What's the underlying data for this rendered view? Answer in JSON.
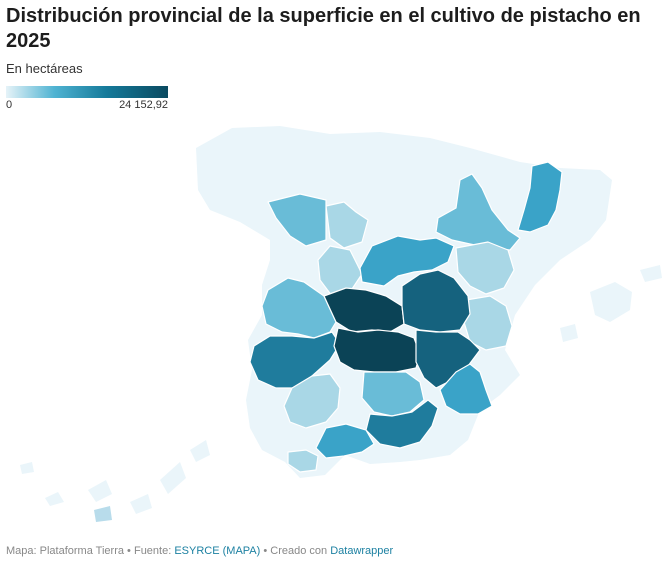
{
  "title": "Distribución provincial de la superficie en el cultivo de pistacho en 2025",
  "subtitle": "En hectáreas",
  "legend": {
    "min_label": "0",
    "max_label": "24 152,92",
    "min_color": "#e6f3f8",
    "max_color": "#0a4a60"
  },
  "footer": {
    "map_label": "Mapa: Plataforma Tierra",
    "separator": " • ",
    "source_label": "Fuente: ",
    "source_link": "ESYRCE (MAPA)",
    "created_label": "Creado con ",
    "created_link": "Datawrapper"
  },
  "colors": {
    "lightest": "#e8f4f9",
    "light": "#a9d7e6",
    "medium_light": "#69bcd7",
    "medium": "#3aa3c8",
    "dark": "#1f7c9d",
    "darker": "#15627e",
    "darkest": "#0b4356"
  }
}
